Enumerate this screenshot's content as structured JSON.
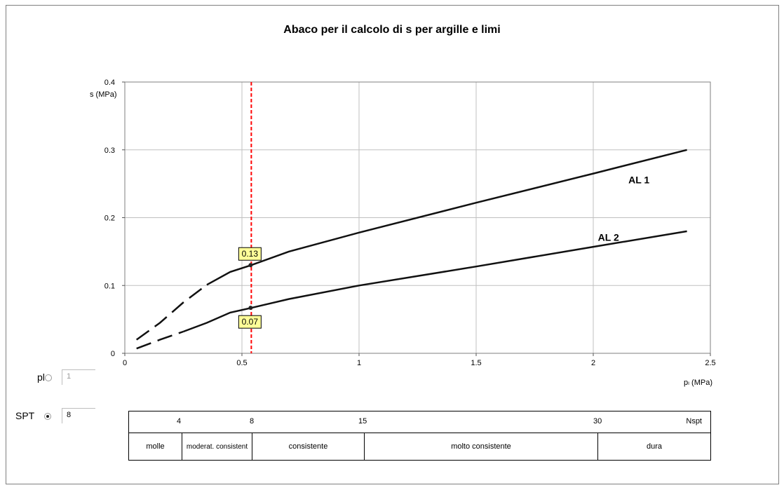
{
  "title": "Abaco per il calcolo di s per argille e limi",
  "chart_data": {
    "type": "line",
    "xlabel": "pₗ (MPa)",
    "ylabel": "s (MPa)",
    "xlim": [
      0,
      2.5
    ],
    "ylim": [
      0,
      0.4
    ],
    "x_ticks": [
      "0",
      "0.5",
      "1",
      "1.5",
      "2",
      "2.5"
    ],
    "y_ticks": [
      "0",
      "0.1",
      "0.2",
      "0.3",
      "0.4"
    ],
    "grid": true,
    "series": [
      {
        "name": "AL 1",
        "dashed_x": [
          [
            0.05,
            0.02
          ],
          [
            0.15,
            0.045
          ],
          [
            0.25,
            0.075
          ],
          [
            0.35,
            0.101
          ]
        ],
        "solid_x": [
          [
            0.35,
            0.101
          ],
          [
            0.45,
            0.12
          ],
          [
            0.54,
            0.13
          ],
          [
            0.7,
            0.15
          ],
          [
            1.0,
            0.178
          ],
          [
            1.5,
            0.222
          ],
          [
            2.0,
            0.265
          ],
          [
            2.4,
            0.3
          ]
        ]
      },
      {
        "name": "AL 2",
        "dashed_x": [
          [
            0.05,
            0.007
          ],
          [
            0.15,
            0.02
          ],
          [
            0.25,
            0.032
          ]
        ],
        "solid_x": [
          [
            0.25,
            0.032
          ],
          [
            0.35,
            0.045
          ],
          [
            0.45,
            0.06
          ],
          [
            0.54,
            0.067
          ],
          [
            0.7,
            0.08
          ],
          [
            1.0,
            0.1
          ],
          [
            1.5,
            0.128
          ],
          [
            2.0,
            0.157
          ],
          [
            2.4,
            0.18
          ]
        ]
      }
    ],
    "marker_x": 0.54,
    "markers": [
      {
        "label": "0.13",
        "x": 0.54,
        "y": 0.13
      },
      {
        "label": "0.07",
        "x": 0.54,
        "y": 0.067
      }
    ],
    "colors": {
      "curve": "#111111",
      "marker_line": "#ff0000",
      "grid": "#c0c0c0",
      "callout_bg": "#ffff99"
    }
  },
  "controls": {
    "pl": {
      "label": "pl",
      "value": "1",
      "selected": false
    },
    "spt": {
      "label": "SPT",
      "value": "8",
      "selected": true
    }
  },
  "nspt_table": {
    "header_label": "Nspt",
    "ticks": [
      "4",
      "8",
      "15",
      "30"
    ],
    "classes": [
      "molle",
      "moderat. consistent",
      "consistente",
      "molto consistente",
      "dura"
    ]
  }
}
